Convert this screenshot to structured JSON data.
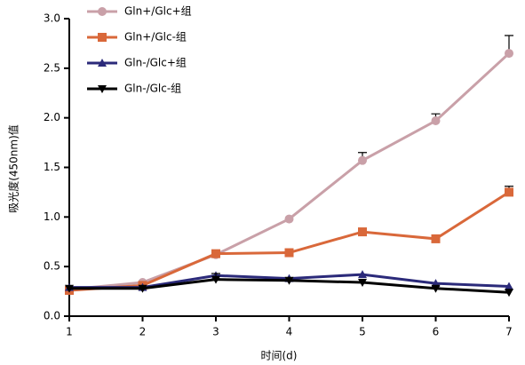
{
  "chart_data": {
    "type": "line",
    "x_label": "时间(d)",
    "y_label": "吸光度(450nm)值",
    "x": [
      1,
      2,
      3,
      4,
      5,
      6,
      7
    ],
    "xlim": [
      1,
      7
    ],
    "xticks": [
      1,
      2,
      3,
      4,
      5,
      6,
      7
    ],
    "ylim": [
      0,
      3
    ],
    "yticks": [
      {
        "value": 0,
        "label": "0.0"
      },
      {
        "value": 0.5,
        "label": "0.5"
      },
      {
        "value": 1,
        "label": "1.0"
      },
      {
        "value": 1.5,
        "label": "1.5"
      },
      {
        "value": 2,
        "label": "2.0"
      },
      {
        "value": 2.5,
        "label": "2.5"
      },
      {
        "value": 3,
        "label": "3.0"
      }
    ],
    "legend": "top-left",
    "series": [
      {
        "name": "Gln+/Glc+组",
        "color": "#c9a0a8",
        "marker": "circle",
        "values": [
          0.27,
          0.34,
          0.62,
          0.98,
          1.57,
          1.97,
          2.65
        ],
        "errors": [
          null,
          null,
          null,
          null,
          0.08,
          0.07,
          0.18
        ]
      },
      {
        "name": "Gln+/Glc-组",
        "color": "#d9683a",
        "marker": "square",
        "values": [
          0.26,
          0.31,
          0.63,
          0.64,
          0.85,
          0.78,
          1.25
        ],
        "errors": [
          null,
          null,
          null,
          null,
          null,
          null,
          0.06
        ]
      },
      {
        "name": "Gln-/Glc+组",
        "color": "#2b2a7a",
        "marker": "triangle",
        "values": [
          0.29,
          0.29,
          0.41,
          0.38,
          0.42,
          0.33,
          0.3
        ],
        "errors": [
          null,
          null,
          null,
          null,
          null,
          null,
          null
        ]
      },
      {
        "name": "Gln-/Glc-组",
        "color": "#000000",
        "marker": "triangle-down",
        "values": [
          0.28,
          0.28,
          0.37,
          0.36,
          0.34,
          0.28,
          0.24
        ],
        "errors": [
          null,
          null,
          0.06,
          null,
          null,
          null,
          null
        ]
      }
    ]
  }
}
